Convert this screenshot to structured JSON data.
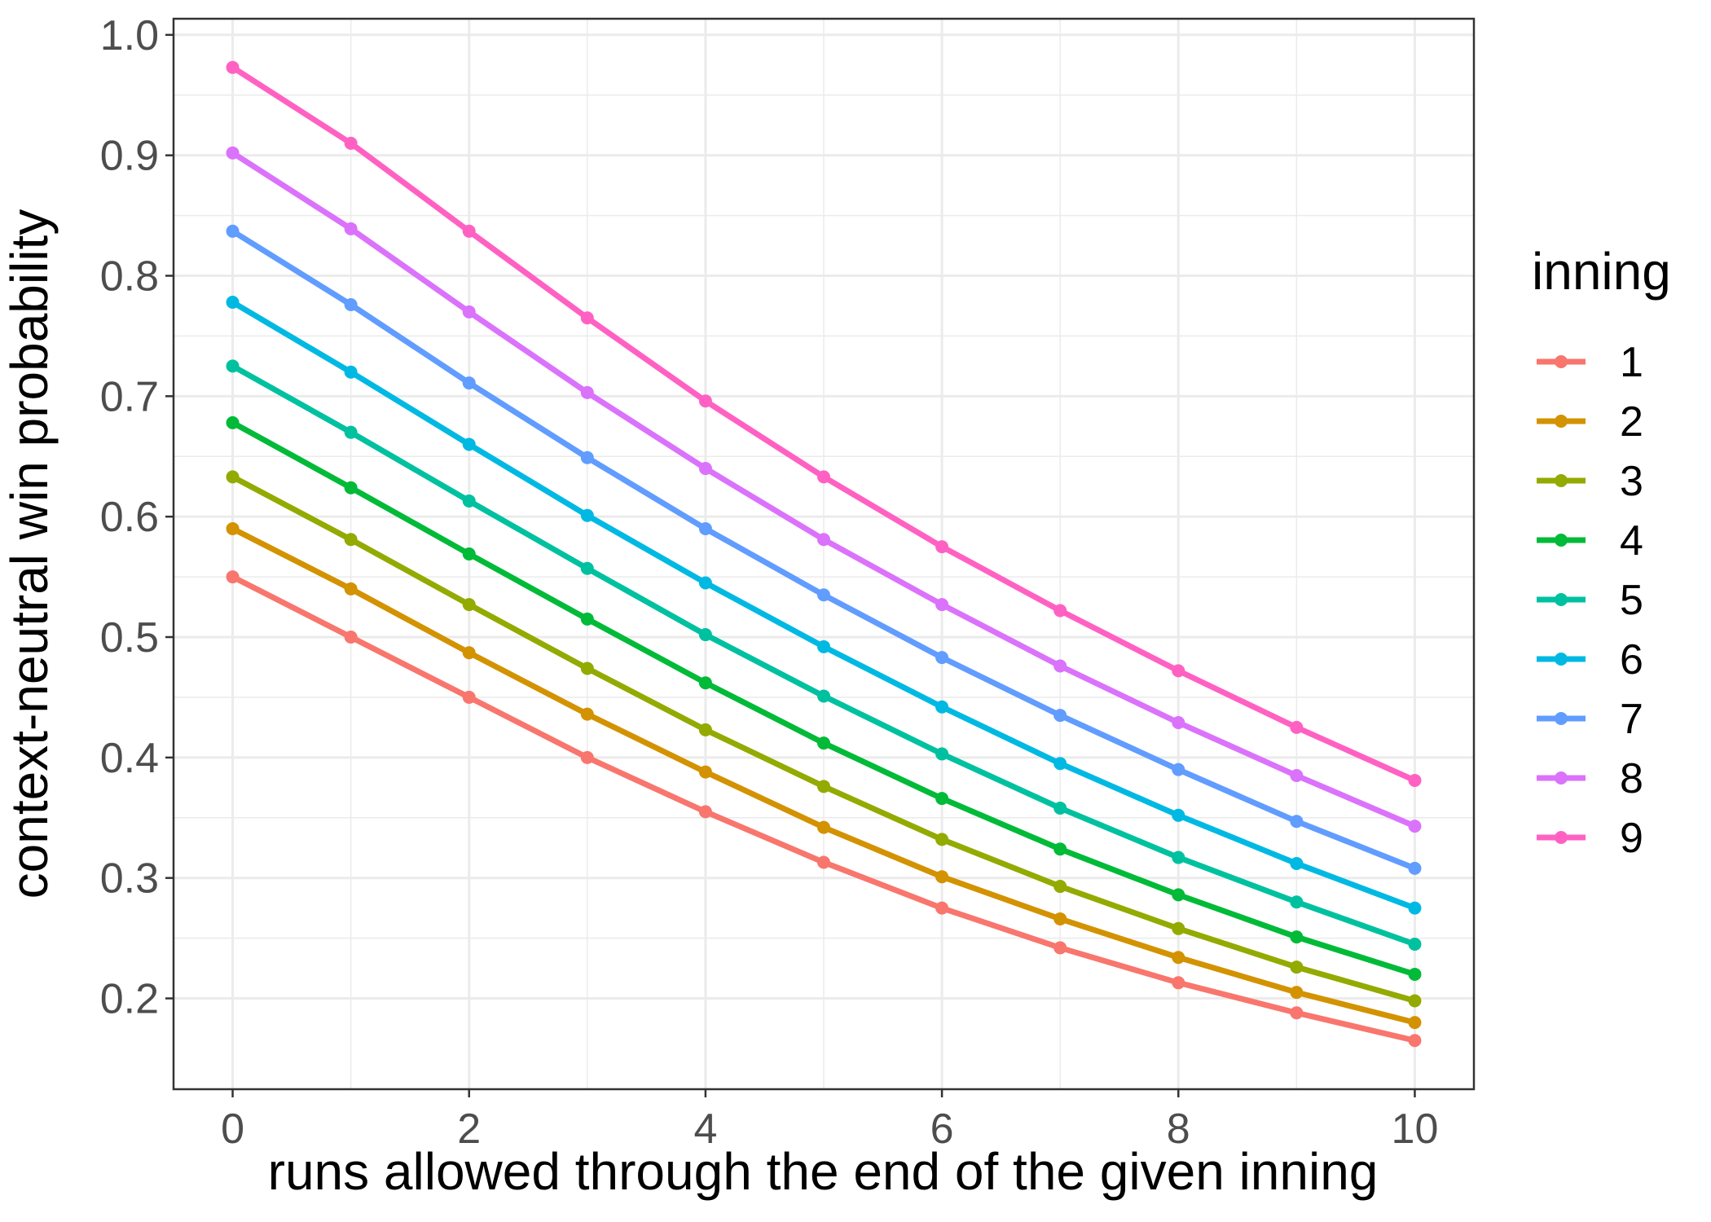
{
  "chart_data": {
    "type": "line",
    "xlabel": "runs allowed through the end of the given inning",
    "ylabel": "context-neutral win probability",
    "legend_title": "inning",
    "legend_position": "right",
    "grid": true,
    "minor_grid": true,
    "x": [
      0,
      1,
      2,
      3,
      4,
      5,
      6,
      7,
      8,
      9,
      10
    ],
    "xlim": [
      -0.5,
      10.5
    ],
    "xticks": [
      0,
      2,
      4,
      6,
      8,
      10
    ],
    "ylim": [
      0.1246,
      1.0134
    ],
    "yticks": [
      0.2,
      0.3,
      0.4,
      0.5,
      0.6,
      0.7,
      0.8,
      0.9,
      {
        "value": 1,
        "label": "1.0"
      }
    ],
    "series": [
      {
        "name": "1",
        "color": "#F8766D",
        "values": [
          0.55,
          0.5,
          0.45,
          0.4,
          0.355,
          0.313,
          0.275,
          0.242,
          0.213,
          0.188,
          0.165
        ]
      },
      {
        "name": "2",
        "color": "#D39200",
        "values": [
          0.59,
          0.54,
          0.487,
          0.436,
          0.388,
          0.342,
          0.301,
          0.266,
          0.234,
          0.205,
          0.18
        ]
      },
      {
        "name": "3",
        "color": "#93AA00",
        "values": [
          0.633,
          0.581,
          0.527,
          0.474,
          0.423,
          0.376,
          0.332,
          0.293,
          0.258,
          0.226,
          0.198
        ]
      },
      {
        "name": "4",
        "color": "#00BA38",
        "values": [
          0.678,
          0.624,
          0.569,
          0.515,
          0.462,
          0.412,
          0.366,
          0.324,
          0.286,
          0.251,
          0.22
        ]
      },
      {
        "name": "5",
        "color": "#00C19F",
        "values": [
          0.725,
          0.67,
          0.613,
          0.557,
          0.502,
          0.451,
          0.403,
          0.358,
          0.317,
          0.28,
          0.245
        ]
      },
      {
        "name": "6",
        "color": "#00B9E3",
        "values": [
          0.778,
          0.72,
          0.66,
          0.601,
          0.545,
          0.492,
          0.442,
          0.395,
          0.352,
          0.312,
          0.275
        ]
      },
      {
        "name": "7",
        "color": "#619CFF",
        "values": [
          0.837,
          0.776,
          0.711,
          0.649,
          0.59,
          0.535,
          0.483,
          0.435,
          0.39,
          0.347,
          0.308
        ]
      },
      {
        "name": "8",
        "color": "#DB72FB",
        "values": [
          0.902,
          0.839,
          0.77,
          0.703,
          0.64,
          0.581,
          0.527,
          0.476,
          0.429,
          0.385,
          0.343
        ]
      },
      {
        "name": "9",
        "color": "#FF61C3",
        "values": [
          0.973,
          0.91,
          0.837,
          0.765,
          0.696,
          0.633,
          0.575,
          0.522,
          0.472,
          0.425,
          0.381
        ]
      }
    ]
  }
}
